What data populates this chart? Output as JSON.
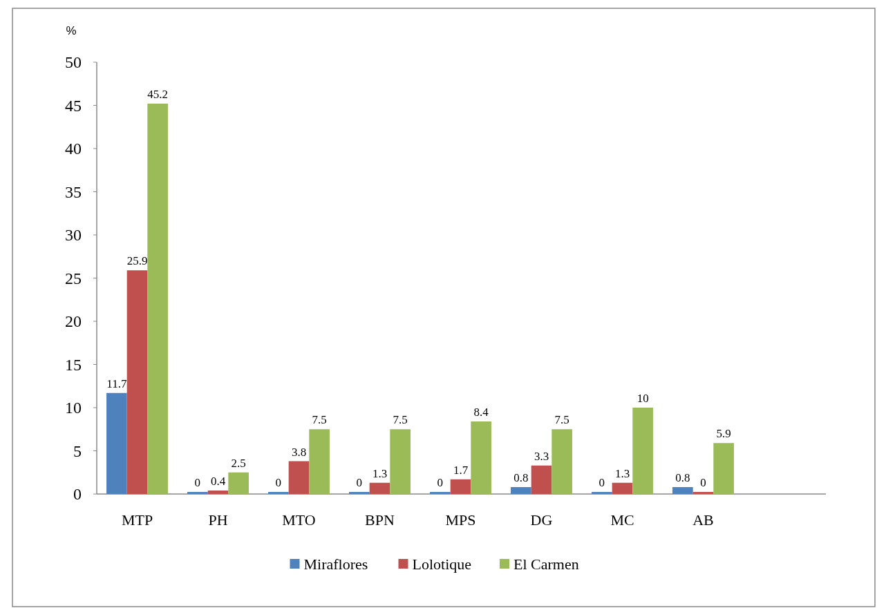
{
  "chart_data": {
    "type": "bar",
    "ylabel": "%",
    "categories": [
      "MTP",
      "PH",
      "MTO",
      "BPN",
      "MPS",
      "DG",
      "MC",
      "AB"
    ],
    "series": [
      {
        "name": "Miraflores",
        "color": "#4f81bd",
        "values": [
          11.7,
          0,
          0,
          0,
          0,
          0.8,
          0,
          0.8
        ]
      },
      {
        "name": "Lolotique",
        "color": "#c0504d",
        "values": [
          25.9,
          0.4,
          3.8,
          1.3,
          1.7,
          3.3,
          1.3,
          0
        ]
      },
      {
        "name": "El Carmen",
        "color": "#9bbb59",
        "values": [
          45.2,
          2.5,
          7.5,
          7.5,
          8.4,
          7.5,
          10,
          5.9
        ]
      }
    ],
    "ylim": [
      0,
      50
    ],
    "yticks": [
      0,
      5,
      10,
      15,
      20,
      25,
      30,
      35,
      40,
      45,
      50
    ],
    "data_labels": true,
    "legend": "bottom",
    "grid": false
  }
}
